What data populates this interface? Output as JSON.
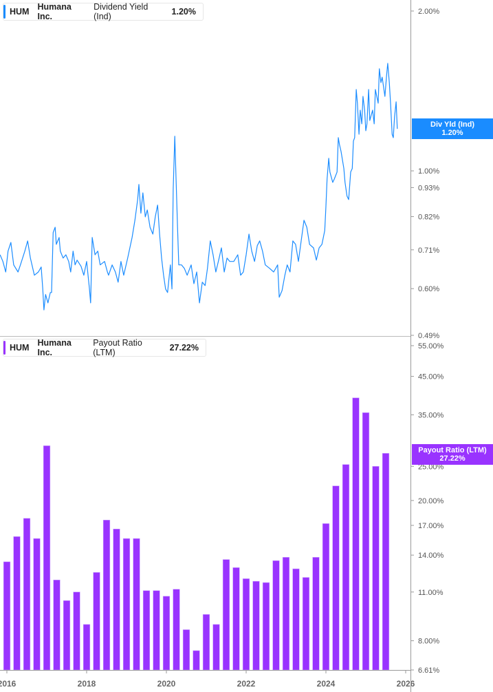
{
  "top_legend": {
    "ticker": "HUM",
    "company": "Humana Inc.",
    "metric": "Dividend Yield (Ind)",
    "value": "1.20%"
  },
  "bottom_legend": {
    "ticker": "HUM",
    "company": "Humana Inc.",
    "metric": "Payout Ratio (LTM)",
    "value": "27.22%"
  },
  "top_tag": {
    "label": "Div Yld (Ind)",
    "value": "1.20%"
  },
  "bottom_tag": {
    "label": "Payout Ratio (LTM)",
    "value": "27.22%"
  },
  "colors": {
    "yield": "#1a8cff",
    "payout": "#9933ff",
    "axis": "#999999",
    "text": "#555555"
  },
  "chart_data": [
    {
      "type": "line",
      "scale": "log",
      "series": [
        {
          "name": "Dividend Yield (Ind)",
          "color": "#1a8cff",
          "points": [
            [
              2015.83,
              0.695
            ],
            [
              2015.9,
              0.675
            ],
            [
              2015.97,
              0.645
            ],
            [
              2016.03,
              0.706
            ],
            [
              2016.1,
              0.733
            ],
            [
              2016.17,
              0.665
            ],
            [
              2016.28,
              0.645
            ],
            [
              2016.34,
              0.665
            ],
            [
              2016.45,
              0.706
            ],
            [
              2016.52,
              0.738
            ],
            [
              2016.59,
              0.685
            ],
            [
              2016.69,
              0.636
            ],
            [
              2016.79,
              0.645
            ],
            [
              2016.86,
              0.659
            ],
            [
              2016.9,
              0.599
            ],
            [
              2016.93,
              0.547
            ],
            [
              2016.97,
              0.585
            ],
            [
              2017.03,
              0.564
            ],
            [
              2017.09,
              0.59
            ],
            [
              2017.12,
              0.59
            ],
            [
              2017.16,
              0.765
            ],
            [
              2017.21,
              0.783
            ],
            [
              2017.24,
              0.727
            ],
            [
              2017.31,
              0.749
            ],
            [
              2017.34,
              0.706
            ],
            [
              2017.41,
              0.685
            ],
            [
              2017.48,
              0.695
            ],
            [
              2017.55,
              0.675
            ],
            [
              2017.6,
              0.645
            ],
            [
              2017.66,
              0.706
            ],
            [
              2017.71,
              0.665
            ],
            [
              2017.76,
              0.679
            ],
            [
              2017.86,
              0.661
            ],
            [
              2017.93,
              0.636
            ],
            [
              2018.0,
              0.675
            ],
            [
              2018.07,
              0.599
            ],
            [
              2018.1,
              0.564
            ],
            [
              2018.14,
              0.749
            ],
            [
              2018.21,
              0.695
            ],
            [
              2018.28,
              0.706
            ],
            [
              2018.34,
              0.665
            ],
            [
              2018.45,
              0.675
            ],
            [
              2018.52,
              0.645
            ],
            [
              2018.55,
              0.636
            ],
            [
              2018.64,
              0.665
            ],
            [
              2018.72,
              0.645
            ],
            [
              2018.79,
              0.617
            ],
            [
              2018.86,
              0.675
            ],
            [
              2018.93,
              0.636
            ],
            [
              2019.03,
              0.685
            ],
            [
              2019.14,
              0.749
            ],
            [
              2019.21,
              0.807
            ],
            [
              2019.28,
              0.883
            ],
            [
              2019.31,
              0.943
            ],
            [
              2019.36,
              0.832
            ],
            [
              2019.41,
              0.909
            ],
            [
              2019.47,
              0.819
            ],
            [
              2019.52,
              0.844
            ],
            [
              2019.59,
              0.783
            ],
            [
              2019.66,
              0.76
            ],
            [
              2019.72,
              0.819
            ],
            [
              2019.78,
              0.862
            ],
            [
              2019.83,
              0.76
            ],
            [
              2019.88,
              0.685
            ],
            [
              2019.93,
              0.636
            ],
            [
              2019.98,
              0.599
            ],
            [
              2020.03,
              0.59
            ],
            [
              2020.1,
              0.665
            ],
            [
              2020.14,
              0.599
            ],
            [
              2020.17,
              0.923
            ],
            [
              2020.21,
              1.162
            ],
            [
              2020.24,
              0.98
            ],
            [
              2020.28,
              0.783
            ],
            [
              2020.31,
              0.665
            ],
            [
              2020.38,
              0.665
            ],
            [
              2020.45,
              0.655
            ],
            [
              2020.52,
              0.636
            ],
            [
              2020.62,
              0.665
            ],
            [
              2020.69,
              0.613
            ],
            [
              2020.76,
              0.645
            ],
            [
              2020.83,
              0.564
            ],
            [
              2020.9,
              0.617
            ],
            [
              2020.97,
              0.608
            ],
            [
              2021.03,
              0.655
            ],
            [
              2021.1,
              0.738
            ],
            [
              2021.17,
              0.695
            ],
            [
              2021.24,
              0.645
            ],
            [
              2021.31,
              0.679
            ],
            [
              2021.38,
              0.716
            ],
            [
              2021.45,
              0.645
            ],
            [
              2021.52,
              0.685
            ],
            [
              2021.59,
              0.675
            ],
            [
              2021.69,
              0.675
            ],
            [
              2021.79,
              0.695
            ],
            [
              2021.86,
              0.636
            ],
            [
              2021.93,
              0.645
            ],
            [
              2022.0,
              0.695
            ],
            [
              2022.07,
              0.76
            ],
            [
              2022.14,
              0.706
            ],
            [
              2022.21,
              0.675
            ],
            [
              2022.28,
              0.723
            ],
            [
              2022.34,
              0.738
            ],
            [
              2022.41,
              0.706
            ],
            [
              2022.48,
              0.665
            ],
            [
              2022.59,
              0.655
            ],
            [
              2022.69,
              0.645
            ],
            [
              2022.79,
              0.665
            ],
            [
              2022.83,
              0.578
            ],
            [
              2022.9,
              0.595
            ],
            [
              2022.97,
              0.636
            ],
            [
              2023.03,
              0.665
            ],
            [
              2023.1,
              0.645
            ],
            [
              2023.17,
              0.738
            ],
            [
              2023.24,
              0.727
            ],
            [
              2023.31,
              0.675
            ],
            [
              2023.38,
              0.738
            ],
            [
              2023.45,
              0.807
            ],
            [
              2023.52,
              0.783
            ],
            [
              2023.59,
              0.727
            ],
            [
              2023.69,
              0.716
            ],
            [
              2023.76,
              0.679
            ],
            [
              2023.83,
              0.716
            ],
            [
              2023.9,
              0.727
            ],
            [
              2023.97,
              0.772
            ],
            [
              2024.0,
              0.857
            ],
            [
              2024.03,
              0.965
            ],
            [
              2024.07,
              1.056
            ],
            [
              2024.1,
              0.995
            ],
            [
              2024.17,
              0.951
            ],
            [
              2024.21,
              0.965
            ],
            [
              2024.28,
              0.995
            ],
            [
              2024.31,
              1.155
            ],
            [
              2024.34,
              1.121
            ],
            [
              2024.38,
              1.088
            ],
            [
              2024.45,
              1.01
            ],
            [
              2024.48,
              0.951
            ],
            [
              2024.53,
              0.896
            ],
            [
              2024.57,
              0.883
            ],
            [
              2024.62,
              0.995
            ],
            [
              2024.66,
              1.01
            ],
            [
              2024.69,
              1.138
            ],
            [
              2024.72,
              1.155
            ],
            [
              2024.76,
              1.423
            ],
            [
              2024.79,
              1.341
            ],
            [
              2024.83,
              1.172
            ],
            [
              2024.86,
              1.301
            ],
            [
              2024.9,
              1.226
            ],
            [
              2024.93,
              1.381
            ],
            [
              2024.97,
              1.301
            ],
            [
              2025.0,
              1.19
            ],
            [
              2025.03,
              1.226
            ],
            [
              2025.07,
              1.423
            ],
            [
              2025.1,
              1.244
            ],
            [
              2025.17,
              1.301
            ],
            [
              2025.21,
              1.226
            ],
            [
              2025.24,
              1.423
            ],
            [
              2025.31,
              1.341
            ],
            [
              2025.34,
              1.557
            ],
            [
              2025.38,
              1.466
            ],
            [
              2025.41,
              1.501
            ],
            [
              2025.48,
              1.381
            ],
            [
              2025.52,
              1.511
            ],
            [
              2025.55,
              1.594
            ],
            [
              2025.59,
              1.466
            ],
            [
              2025.62,
              1.341
            ],
            [
              2025.66,
              1.172
            ],
            [
              2025.69,
              1.155
            ],
            [
              2025.72,
              1.263
            ],
            [
              2025.76,
              1.349
            ],
            [
              2025.79,
              1.2
            ]
          ]
        }
      ],
      "ylim": [
        0.49,
        2.0
      ],
      "yticks": [
        "2.00%",
        "1.00%",
        "0.93%",
        "0.82%",
        "0.71%",
        "0.60%",
        "0.49%"
      ],
      "ytick_values": [
        2.0,
        1.0,
        0.93,
        0.82,
        0.71,
        0.6,
        0.49
      ],
      "grid": false
    },
    {
      "type": "bar",
      "scale": "log",
      "series": [
        {
          "name": "Payout Ratio (LTM)",
          "color": "#9933ff",
          "x": [
            2016.0,
            2016.25,
            2016.5,
            2016.75,
            2017.0,
            2017.25,
            2017.5,
            2017.75,
            2018.0,
            2018.25,
            2018.5,
            2018.75,
            2019.0,
            2019.25,
            2019.5,
            2019.75,
            2020.0,
            2020.25,
            2020.5,
            2020.75,
            2021.0,
            2021.25,
            2021.5,
            2021.75,
            2022.0,
            2022.25,
            2022.5,
            2022.75,
            2023.0,
            2023.25,
            2023.5,
            2023.75,
            2024.0,
            2024.25,
            2024.5,
            2024.75,
            2025.0,
            2025.25,
            2025.5
          ],
          "values": [
            13.4,
            15.8,
            17.8,
            15.6,
            28.6,
            11.9,
            10.4,
            11.0,
            8.9,
            12.5,
            17.6,
            16.6,
            15.6,
            15.6,
            11.1,
            11.1,
            10.7,
            11.2,
            8.6,
            7.5,
            9.5,
            8.9,
            13.6,
            12.9,
            12.0,
            11.8,
            11.7,
            13.5,
            13.8,
            12.8,
            12.1,
            13.8,
            17.2,
            22.0,
            25.3,
            39.1,
            35.5,
            25.0,
            27.22
          ]
        }
      ],
      "ylim": [
        6.61,
        55.0
      ],
      "yticks": [
        "55.00%",
        "45.00%",
        "35.00%",
        "25.00%",
        "20.00%",
        "17.00%",
        "14.00%",
        "11.00%",
        "8.00%",
        "6.61%"
      ],
      "ytick_values": [
        55,
        45,
        35,
        25,
        20,
        17,
        14,
        11,
        8,
        6.61
      ],
      "xticks": [
        "2016",
        "2018",
        "2020",
        "2022",
        "2024",
        "2026"
      ],
      "xtick_values": [
        2016,
        2018,
        2020,
        2022,
        2024,
        2026
      ],
      "grid": false
    }
  ]
}
